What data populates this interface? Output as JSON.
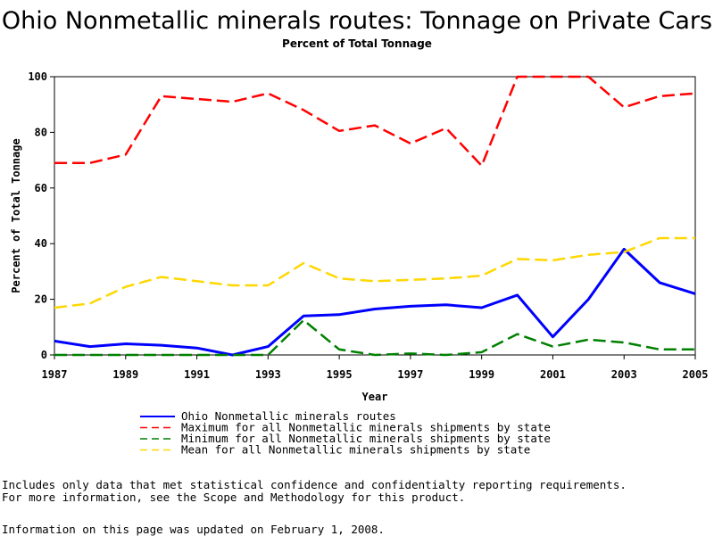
{
  "chart_data": {
    "type": "line",
    "title": "Ohio Nonmetallic minerals routes: Tonnage on Private Cars",
    "subtitle": "Percent of Total Tonnage",
    "xlabel": "Year",
    "ylabel": "Percent of Total Tonnage",
    "xlim": [
      1987,
      2005
    ],
    "ylim": [
      0,
      100
    ],
    "x_ticks": [
      "1987",
      "1989",
      "1991",
      "1993",
      "1995",
      "1997",
      "1999",
      "2001",
      "2003",
      "2005"
    ],
    "y_ticks": [
      "0",
      "20",
      "40",
      "60",
      "80",
      "100"
    ],
    "x": [
      1987,
      1988,
      1989,
      1990,
      1991,
      1992,
      1993,
      1994,
      1995,
      1996,
      1997,
      1998,
      1999,
      2000,
      2001,
      2002,
      2003,
      2004,
      2005
    ],
    "series": [
      {
        "name": "Ohio Nonmetallic minerals routes",
        "color": "#0000ff",
        "dash": "solid",
        "values": [
          5,
          3,
          4,
          3.5,
          2.5,
          0,
          3,
          14,
          14.5,
          16.5,
          17.5,
          18,
          17,
          21.5,
          6.5,
          20,
          38,
          26,
          22
        ]
      },
      {
        "name": "Maximum for all Nonmetallic minerals shipments by state",
        "color": "#ff0000",
        "dash": "dashed",
        "values": [
          69,
          69,
          72,
          93,
          92,
          91,
          94,
          88,
          80.5,
          82.5,
          76,
          81.5,
          68,
          100,
          100,
          100,
          89,
          93,
          94
        ]
      },
      {
        "name": "Minimum for all Nonmetallic minerals shipments by state",
        "color": "#008000",
        "dash": "dashed",
        "values": [
          0,
          0,
          0,
          0,
          0,
          0,
          0,
          12.5,
          2,
          0,
          0.5,
          0,
          1,
          7.5,
          3,
          5.5,
          4.5,
          2,
          2
        ]
      },
      {
        "name": "Mean for all Nonmetallic minerals shipments by state",
        "color": "#ffd700",
        "dash": "dashed",
        "values": [
          17,
          18.5,
          24.5,
          28,
          26.5,
          25,
          25,
          33,
          27.5,
          26.5,
          27,
          27.5,
          28.5,
          34.5,
          34,
          36,
          37,
          42,
          42
        ]
      }
    ]
  },
  "notes": {
    "line1": "Includes only data that met statistical confidence and confidentialty reporting requirements.",
    "line2": "For more information, see the Scope and Methodology for this product.",
    "line3": "Information on this page was updated on February 1, 2008."
  }
}
